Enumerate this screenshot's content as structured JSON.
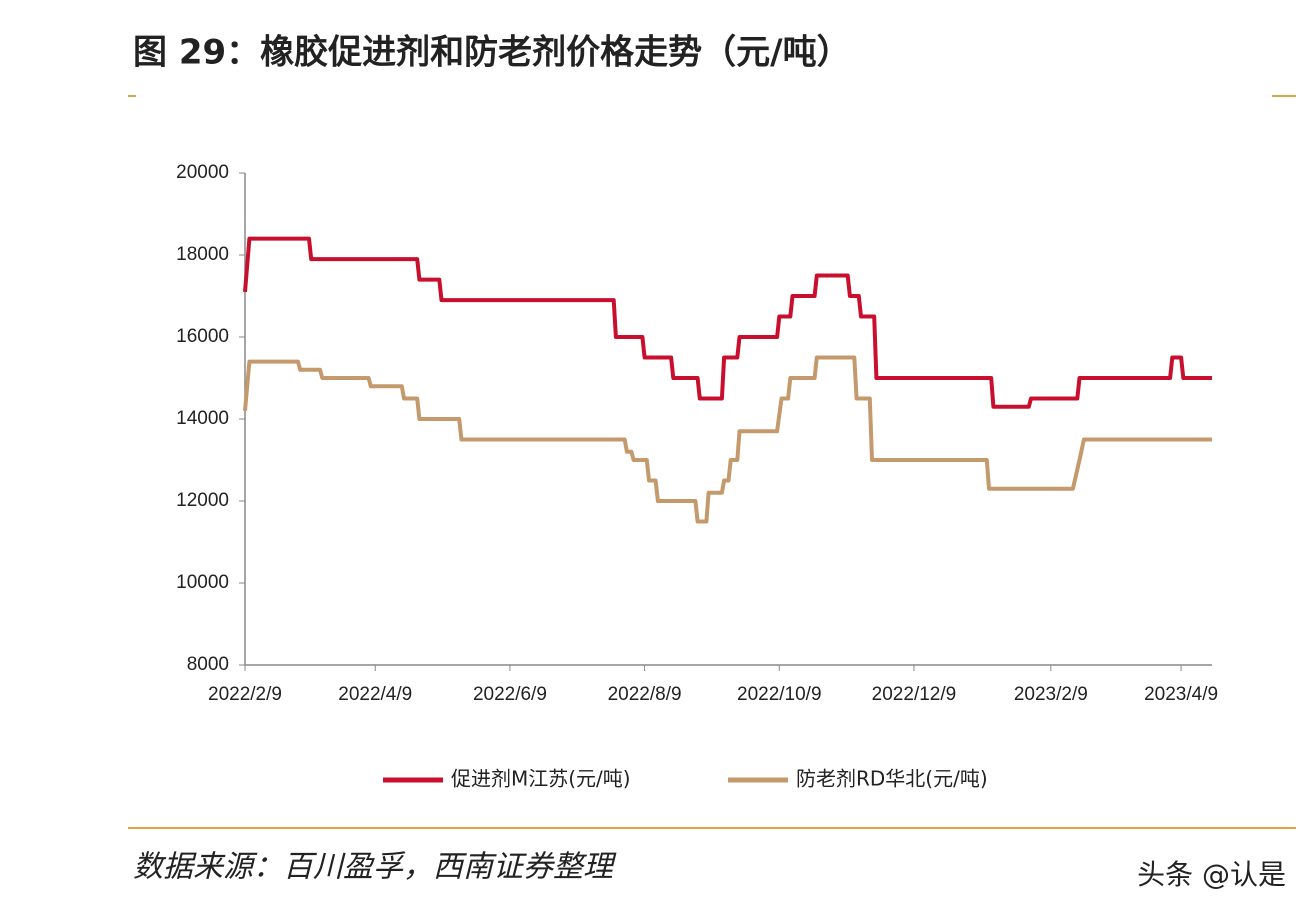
{
  "chart_data": {
    "type": "line",
    "title": "图 29：橡胶促进剂和防老剂价格走势（元/吨）",
    "source": "数据来源：百川盈孚，西南证券整理",
    "watermark": "头条 @认是",
    "xlim": [
      "2022-02-09",
      "2023-04-23"
    ],
    "xticks": [
      {
        "value": "2022-02-09",
        "label": "2022/2/9"
      },
      {
        "value": "2022-04-09",
        "label": "2022/4/9"
      },
      {
        "value": "2022-06-09",
        "label": "2022/6/9"
      },
      {
        "value": "2022-08-09",
        "label": "2022/8/9"
      },
      {
        "value": "2022-10-09",
        "label": "2022/10/9"
      },
      {
        "value": "2022-12-09",
        "label": "2022/12/9"
      },
      {
        "value": "2023-02-09",
        "label": "2023/2/9"
      },
      {
        "value": "2023-04-09",
        "label": "2023/4/9"
      }
    ],
    "ylim": [
      8000,
      20000
    ],
    "yticks": [
      8000,
      10000,
      12000,
      14000,
      16000,
      18000,
      20000
    ],
    "grid": false,
    "legend": "bottom",
    "series": [
      {
        "name": "促进剂M江苏(元/吨)",
        "color": "#c8102e",
        "x": [
          "2022-02-09",
          "2022-02-11",
          "2022-03-10",
          "2022-03-11",
          "2022-04-28",
          "2022-04-29",
          "2022-05-08",
          "2022-05-09",
          "2022-07-26",
          "2022-07-27",
          "2022-08-08",
          "2022-08-09",
          "2022-08-21",
          "2022-08-22",
          "2022-09-02",
          "2022-09-03",
          "2022-09-13",
          "2022-09-14",
          "2022-09-20",
          "2022-09-21",
          "2022-10-08",
          "2022-10-09",
          "2022-10-14",
          "2022-10-15",
          "2022-10-25",
          "2022-10-26",
          "2022-11-09",
          "2022-11-10",
          "2022-11-14",
          "2022-11-15",
          "2022-11-21",
          "2022-11-22",
          "2023-01-13",
          "2023-01-14",
          "2023-01-30",
          "2023-01-31",
          "2023-02-21",
          "2023-02-22",
          "2023-04-04",
          "2023-04-05",
          "2023-04-09",
          "2023-04-10",
          "2023-04-23"
        ],
        "values": [
          17100,
          18400,
          18400,
          17900,
          17900,
          17400,
          17400,
          16900,
          16900,
          16000,
          16000,
          15500,
          15500,
          15000,
          15000,
          14500,
          14500,
          15500,
          15500,
          16000,
          16000,
          16500,
          16500,
          17000,
          17000,
          17500,
          17500,
          17000,
          17000,
          16500,
          16500,
          15000,
          15000,
          14300,
          14300,
          14500,
          14500,
          15000,
          15000,
          15500,
          15500,
          15000,
          15000
        ]
      },
      {
        "name": "防老剂RD华北(元/吨)",
        "color": "#c49a6c",
        "x": [
          "2022-02-09",
          "2022-02-11",
          "2022-03-05",
          "2022-03-06",
          "2022-03-15",
          "2022-03-16",
          "2022-04-06",
          "2022-04-07",
          "2022-04-21",
          "2022-04-22",
          "2022-04-28",
          "2022-04-29",
          "2022-05-17",
          "2022-05-18",
          "2022-07-31",
          "2022-08-01",
          "2022-08-03",
          "2022-08-04",
          "2022-08-10",
          "2022-08-11",
          "2022-08-14",
          "2022-08-15",
          "2022-09-01",
          "2022-09-02",
          "2022-09-06",
          "2022-09-07",
          "2022-09-13",
          "2022-09-14",
          "2022-09-16",
          "2022-09-17",
          "2022-09-20",
          "2022-09-21",
          "2022-10-08",
          "2022-10-10",
          "2022-10-13",
          "2022-10-14",
          "2022-10-25",
          "2022-10-26",
          "2022-11-12",
          "2022-11-13",
          "2022-11-19",
          "2022-11-20",
          "2023-01-11",
          "2023-01-12",
          "2023-02-19",
          "2023-02-22",
          "2023-02-24",
          "2023-04-23"
        ],
        "values": [
          14200,
          15400,
          15400,
          15200,
          15200,
          15000,
          15000,
          14800,
          14800,
          14500,
          14500,
          14000,
          14000,
          13500,
          13500,
          13200,
          13200,
          13000,
          13000,
          12500,
          12500,
          12000,
          12000,
          11500,
          11500,
          12200,
          12200,
          12500,
          12500,
          13000,
          13000,
          13700,
          13700,
          14500,
          14500,
          15000,
          15000,
          15500,
          15500,
          14500,
          14500,
          13000,
          13000,
          12300,
          12300,
          13000,
          13500,
          13500
        ]
      }
    ]
  }
}
